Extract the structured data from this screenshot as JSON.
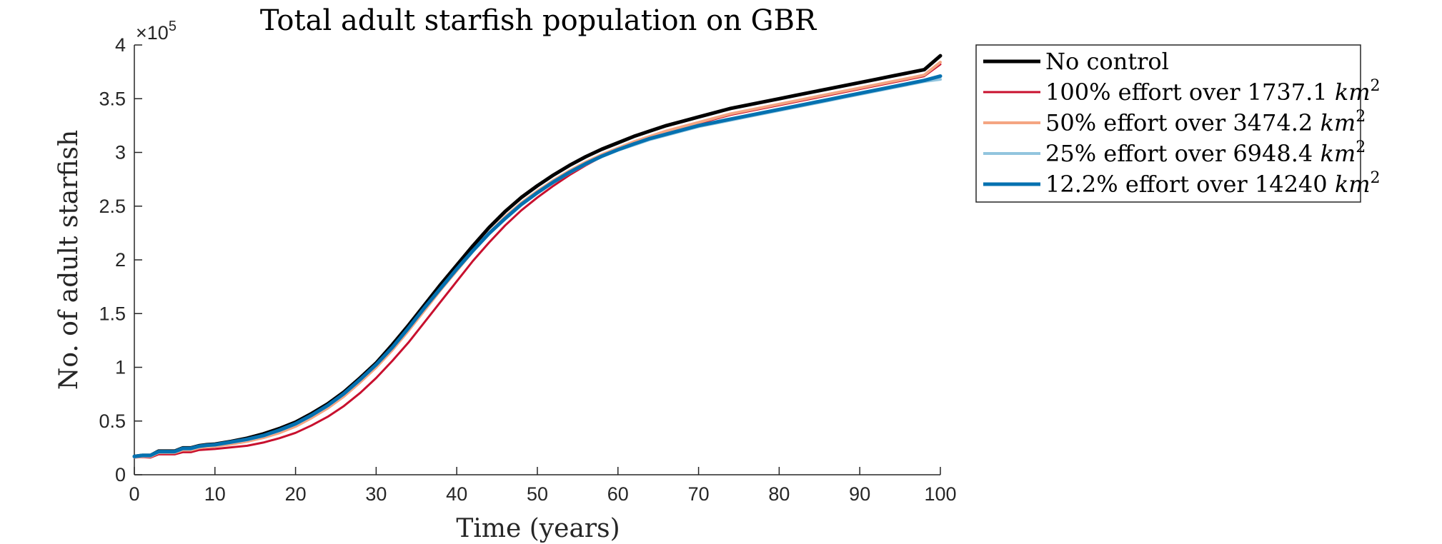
{
  "chart_data": {
    "type": "line",
    "title": "Total adult starfish population on GBR",
    "xlabel": "Time (years)",
    "ylabel": "No. of adult starfish",
    "y_exponent_label": "×10",
    "y_exponent_power": "5",
    "xlim": [
      0,
      100
    ],
    "ylim": [
      0,
      4
    ],
    "x_ticks": [
      0,
      10,
      20,
      30,
      40,
      50,
      60,
      70,
      80,
      90,
      100
    ],
    "y_ticks": [
      0,
      0.5,
      1,
      1.5,
      2,
      2.5,
      3,
      3.5,
      4
    ],
    "grid": false,
    "legend_position": "outside-top-right",
    "x": [
      0,
      1,
      2,
      3,
      4,
      5,
      6,
      7,
      8,
      9,
      10,
      12,
      14,
      16,
      18,
      20,
      22,
      24,
      26,
      28,
      30,
      32,
      34,
      36,
      38,
      40,
      42,
      44,
      46,
      48,
      50,
      52,
      54,
      56,
      58,
      60,
      62,
      64,
      66,
      68,
      70,
      72,
      74,
      76,
      78,
      80,
      82,
      84,
      86,
      88,
      90,
      92,
      94,
      96,
      98,
      100
    ],
    "series": [
      {
        "name": "No control",
        "name_unit": "",
        "name_power": "",
        "color": "#000000",
        "width": 5,
        "values": [
          0.17,
          0.18,
          0.18,
          0.22,
          0.22,
          0.22,
          0.25,
          0.25,
          0.27,
          0.28,
          0.285,
          0.31,
          0.34,
          0.38,
          0.43,
          0.49,
          0.57,
          0.66,
          0.77,
          0.9,
          1.04,
          1.21,
          1.39,
          1.58,
          1.77,
          1.95,
          2.13,
          2.3,
          2.45,
          2.58,
          2.69,
          2.79,
          2.88,
          2.96,
          3.03,
          3.09,
          3.15,
          3.2,
          3.25,
          3.29,
          3.33,
          3.37,
          3.41,
          3.44,
          3.47,
          3.5,
          3.53,
          3.56,
          3.59,
          3.62,
          3.65,
          3.68,
          3.71,
          3.74,
          3.77,
          3.9
        ]
      },
      {
        "name": "100% effort over 1737.1 ",
        "name_unit": "km",
        "name_power": "2",
        "color": "#c8102e",
        "width": 3,
        "values": [
          0.16,
          0.165,
          0.16,
          0.19,
          0.19,
          0.19,
          0.21,
          0.21,
          0.23,
          0.235,
          0.24,
          0.255,
          0.27,
          0.3,
          0.34,
          0.39,
          0.46,
          0.54,
          0.64,
          0.76,
          0.9,
          1.06,
          1.23,
          1.42,
          1.61,
          1.8,
          1.99,
          2.16,
          2.32,
          2.46,
          2.58,
          2.69,
          2.79,
          2.88,
          2.96,
          3.03,
          3.09,
          3.14,
          3.19,
          3.23,
          3.27,
          3.31,
          3.35,
          3.38,
          3.41,
          3.44,
          3.47,
          3.5,
          3.53,
          3.56,
          3.59,
          3.62,
          3.65,
          3.68,
          3.71,
          3.82
        ]
      },
      {
        "name": "50% effort over 3474.2 ",
        "name_unit": "km",
        "name_power": "2",
        "color": "#f4a582",
        "width": 4,
        "values": [
          0.165,
          0.17,
          0.17,
          0.205,
          0.205,
          0.205,
          0.23,
          0.23,
          0.25,
          0.26,
          0.265,
          0.285,
          0.31,
          0.345,
          0.39,
          0.45,
          0.53,
          0.62,
          0.73,
          0.86,
          1.0,
          1.16,
          1.34,
          1.53,
          1.72,
          1.9,
          2.08,
          2.25,
          2.4,
          2.53,
          2.64,
          2.74,
          2.83,
          2.91,
          2.98,
          3.04,
          3.1,
          3.15,
          3.2,
          3.24,
          3.28,
          3.32,
          3.36,
          3.39,
          3.42,
          3.45,
          3.48,
          3.51,
          3.54,
          3.57,
          3.6,
          3.63,
          3.66,
          3.69,
          3.72,
          3.84
        ]
      },
      {
        "name": "25% effort over 6948.4 ",
        "name_unit": "km",
        "name_power": "2",
        "color": "#92c5de",
        "width": 4,
        "values": [
          0.165,
          0.175,
          0.175,
          0.21,
          0.21,
          0.21,
          0.24,
          0.24,
          0.26,
          0.27,
          0.275,
          0.3,
          0.325,
          0.36,
          0.41,
          0.47,
          0.55,
          0.64,
          0.75,
          0.88,
          1.02,
          1.18,
          1.36,
          1.55,
          1.73,
          1.91,
          2.08,
          2.24,
          2.38,
          2.51,
          2.62,
          2.72,
          2.81,
          2.89,
          2.96,
          3.02,
          3.07,
          3.12,
          3.16,
          3.2,
          3.24,
          3.27,
          3.3,
          3.33,
          3.36,
          3.39,
          3.42,
          3.45,
          3.48,
          3.51,
          3.54,
          3.57,
          3.6,
          3.63,
          3.66,
          3.68
        ]
      },
      {
        "name": "12.2% effort over 14240 ",
        "name_unit": "km",
        "name_power": "2",
        "color": "#0571b0",
        "width": 5,
        "values": [
          0.17,
          0.18,
          0.18,
          0.215,
          0.215,
          0.215,
          0.245,
          0.245,
          0.265,
          0.275,
          0.28,
          0.305,
          0.33,
          0.365,
          0.415,
          0.475,
          0.555,
          0.645,
          0.755,
          0.885,
          1.025,
          1.185,
          1.365,
          1.555,
          1.735,
          1.915,
          2.085,
          2.245,
          2.385,
          2.515,
          2.625,
          2.725,
          2.815,
          2.895,
          2.965,
          3.025,
          3.08,
          3.13,
          3.17,
          3.21,
          3.25,
          3.28,
          3.31,
          3.34,
          3.37,
          3.4,
          3.43,
          3.46,
          3.49,
          3.52,
          3.55,
          3.58,
          3.61,
          3.64,
          3.67,
          3.71
        ]
      }
    ]
  }
}
